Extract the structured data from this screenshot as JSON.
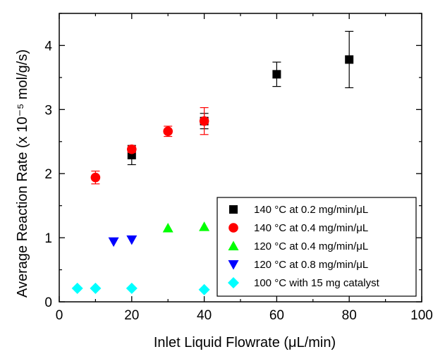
{
  "chart_data": {
    "type": "scatter",
    "xlabel": "Inlet Liquid Flowrate (μL/min)",
    "ylabel": "Average Reaction Rate (x 10⁻⁵ mol/g/s)",
    "xlim": [
      0,
      100
    ],
    "ylim": [
      0,
      4.5
    ],
    "xticks": [
      "0",
      "20",
      "40",
      "60",
      "80",
      "100"
    ],
    "yticks": [
      "0",
      "1",
      "2",
      "3",
      "4"
    ],
    "grid": false,
    "legend_position": "bottom-right",
    "series": [
      {
        "name": "140 °C at 0.2 mg/min/μL",
        "marker": "square",
        "color": "#000000",
        "points": [
          {
            "x": 20,
            "y": 2.29,
            "err": 0.15
          },
          {
            "x": 40,
            "y": 2.82,
            "err": 0.12
          },
          {
            "x": 60,
            "y": 3.55,
            "err": 0.19
          },
          {
            "x": 80,
            "y": 3.78,
            "err": 0.44
          }
        ]
      },
      {
        "name": "140 °C at 0.4 mg/min/μL",
        "marker": "circle",
        "color": "#ff0000",
        "points": [
          {
            "x": 10,
            "y": 1.94,
            "err": 0.1
          },
          {
            "x": 20,
            "y": 2.38,
            "err": 0.05
          },
          {
            "x": 30,
            "y": 2.66,
            "err": 0.08
          },
          {
            "x": 40,
            "y": 2.82,
            "err": 0.21
          }
        ]
      },
      {
        "name": "120 °C at 0.4 mg/min/μL",
        "marker": "triangle-up",
        "color": "#00ff00",
        "points": [
          {
            "x": 30,
            "y": 1.15,
            "err": 0
          },
          {
            "x": 40,
            "y": 1.17,
            "err": 0
          }
        ]
      },
      {
        "name": "120 °C at 0.8 mg/min/μL",
        "marker": "triangle-down",
        "color": "#0000ff",
        "points": [
          {
            "x": 15,
            "y": 0.94,
            "err": 0
          },
          {
            "x": 20,
            "y": 0.97,
            "err": 0
          }
        ]
      },
      {
        "name": "100 °C with 15 mg catalyst",
        "marker": "diamond",
        "color": "#00ffff",
        "points": [
          {
            "x": 5,
            "y": 0.21,
            "err": 0
          },
          {
            "x": 10,
            "y": 0.21,
            "err": 0
          },
          {
            "x": 20,
            "y": 0.21,
            "err": 0
          },
          {
            "x": 40,
            "y": 0.19,
            "err": 0
          }
        ]
      }
    ]
  }
}
